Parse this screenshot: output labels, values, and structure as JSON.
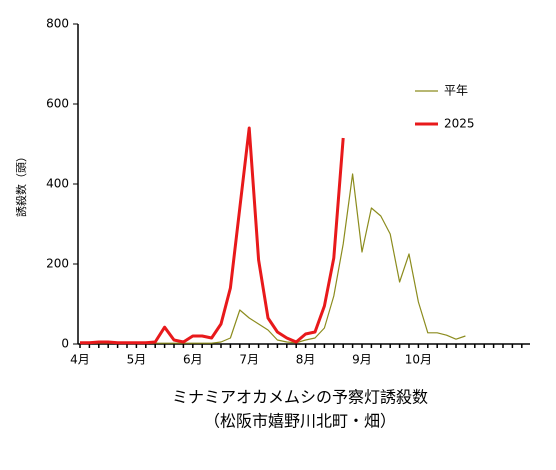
{
  "chart_data": {
    "type": "line",
    "title": "ミナミアオカメムシの予察灯誘殺数",
    "subtitle": "（松阪市嬉野川北町・畑）",
    "y_label": "誘殺数（頭）",
    "categories": [
      "4月",
      null,
      null,
      null,
      null,
      null,
      "5月",
      null,
      null,
      null,
      null,
      null,
      "6月",
      null,
      null,
      null,
      null,
      null,
      "7月",
      null,
      null,
      null,
      null,
      null,
      "8月",
      null,
      null,
      null,
      null,
      null,
      "9月",
      null,
      null,
      null,
      null,
      null,
      "10月",
      null,
      null,
      null,
      null,
      null,
      null,
      null,
      null,
      null,
      null,
      null
    ],
    "series": [
      {
        "name": "平年",
        "color": "#8c8c1e",
        "values": [
          2,
          2,
          2,
          2,
          2,
          2,
          2,
          2,
          2,
          2,
          2,
          2,
          2,
          2,
          2,
          5,
          15,
          85,
          65,
          50,
          35,
          10,
          5,
          3,
          10,
          15,
          40,
          120,
          250,
          425,
          230,
          340,
          320,
          275,
          155,
          225,
          105,
          28,
          28,
          22,
          12,
          20,
          null,
          null,
          null,
          null,
          null,
          null
        ]
      },
      {
        "name": "2025",
        "color": "#e8191b",
        "values": [
          3,
          3,
          5,
          5,
          3,
          3,
          3,
          3,
          5,
          42,
          10,
          5,
          20,
          20,
          15,
          50,
          140,
          340,
          540,
          210,
          65,
          30,
          15,
          5,
          25,
          30,
          95,
          215,
          515,
          null,
          null,
          null,
          null,
          null,
          null,
          null,
          null,
          null,
          null,
          null,
          null,
          null,
          null,
          null,
          null,
          null,
          null,
          null
        ]
      }
    ],
    "ylim": [
      0,
      800
    ],
    "yticks": [
      0,
      200,
      400,
      600,
      800
    ],
    "grid": false
  }
}
